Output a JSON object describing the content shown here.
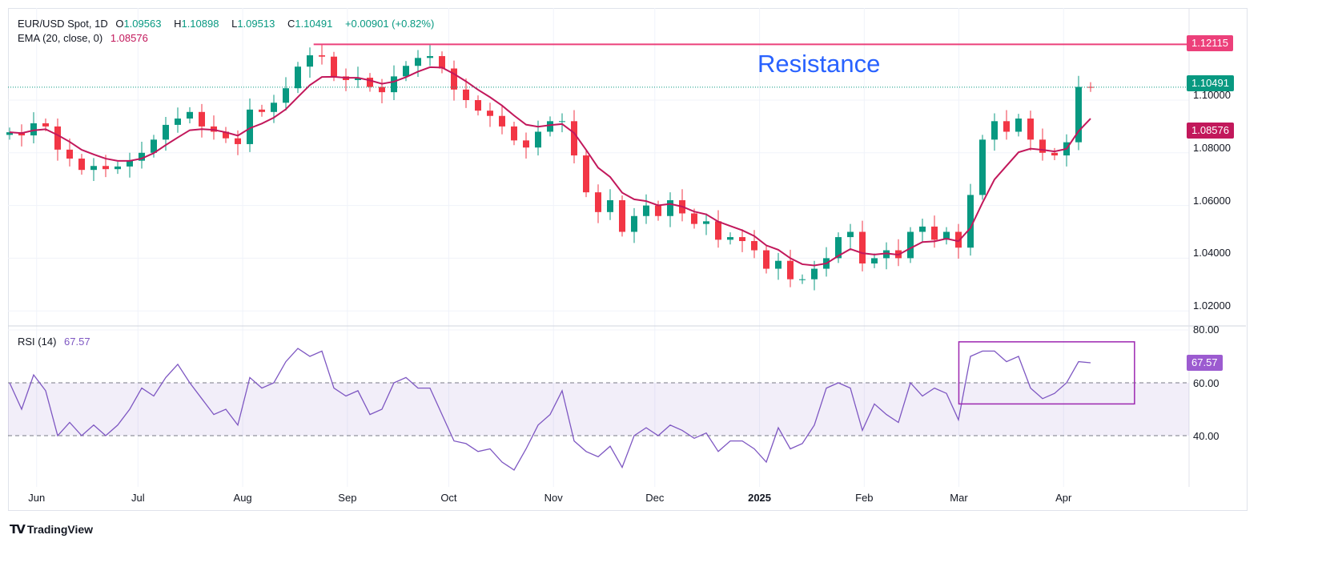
{
  "header": {
    "symbol": "EUR/USD Spot, 1D",
    "open_label": "O",
    "open": "1.09563",
    "high_label": "H",
    "high": "1.10898",
    "low_label": "L",
    "low": "1.09513",
    "close_label": "C",
    "close": "1.10491",
    "change": "+0.00901 (+0.82%)",
    "ema_label": "EMA (20, close, 0)",
    "ema_value": "1.08576",
    "rsi_label": "RSI (14)",
    "rsi_value": "67.57"
  },
  "annotation_text": "Resistance",
  "price_tags": {
    "resistance": "1.12115",
    "last": "1.10491",
    "ema": "1.08576",
    "rsi": "67.57"
  },
  "price_axis": [
    "1.10000",
    "1.08000",
    "1.06000",
    "1.04000",
    "1.02000"
  ],
  "rsi_axis": [
    "80.00",
    "60.00",
    "40.00"
  ],
  "brand": "TradingView",
  "colors": {
    "up": "#089981",
    "down": "#f23645",
    "ema": "#c2185b",
    "resistance": "#ec407a",
    "rsi": "#7e57c2",
    "rsi_box": "#9c27b0",
    "annotation": "#2962ff"
  },
  "chart_data": [
    {
      "type": "candlestick",
      "title": "EUR/USD Spot, 1D",
      "x_range": [
        "2024-05-24",
        "2025-04-09"
      ],
      "ylim": [
        1.012,
        1.127
      ],
      "grid": true,
      "x_ticks": [
        {
          "label": "Jun",
          "date": "2024-06-01"
        },
        {
          "label": "Jul",
          "date": "2024-07-01"
        },
        {
          "label": "Aug",
          "date": "2024-08-01"
        },
        {
          "label": "Sep",
          "date": "2024-09-01"
        },
        {
          "label": "Oct",
          "date": "2024-10-01"
        },
        {
          "label": "Nov",
          "date": "2024-11-01"
        },
        {
          "label": "Dec",
          "date": "2024-12-01"
        },
        {
          "label": "2025",
          "date": "2025-01-01"
        },
        {
          "label": "Feb",
          "date": "2025-02-01"
        },
        {
          "label": "Mar",
          "date": "2025-03-01"
        },
        {
          "label": "Apr",
          "date": "2025-04-01"
        }
      ],
      "y_ticks": [
        1.1,
        1.08,
        1.06,
        1.04,
        1.02
      ],
      "close": [
        1.0878,
        1.0866,
        1.0912,
        1.09,
        1.0812,
        1.0778,
        1.0735,
        1.075,
        1.0738,
        1.0748,
        1.077,
        1.08,
        1.085,
        1.0906,
        1.093,
        1.0955,
        1.09,
        1.088,
        1.0855,
        1.0833,
        1.0964,
        1.0955,
        1.099,
        1.1045,
        1.1127,
        1.117,
        1.1165,
        1.109,
        1.1076,
        1.1085,
        1.105,
        1.103,
        1.109,
        1.113,
        1.116,
        1.1167,
        1.112,
        1.104,
        1.1,
        1.096,
        1.094,
        1.09,
        1.0847,
        1.082,
        1.088,
        1.092,
        1.092,
        1.079,
        1.065,
        1.0575,
        1.062,
        1.05,
        1.056,
        1.06,
        1.056,
        1.062,
        1.057,
        1.053,
        1.054,
        1.047,
        1.048,
        1.0465,
        1.043,
        1.036,
        1.039,
        1.032,
        1.032,
        1.036,
        1.04,
        1.048,
        1.05,
        1.038,
        1.04,
        1.043,
        1.04,
        1.05,
        1.052,
        1.047,
        1.05,
        1.044,
        1.064,
        1.085,
        1.092,
        1.088,
        1.093,
        1.085,
        1.08,
        1.079,
        1.084,
        1.105,
        1.1049
      ],
      "ema_period": 20,
      "ema_last": 1.08576,
      "resistance": {
        "level": 1.12115,
        "from": "2024-08-22"
      }
    },
    {
      "type": "line",
      "title": "RSI (14)",
      "ylim": [
        20,
        82
      ],
      "y_ticks": [
        80,
        60,
        40
      ],
      "band": [
        40,
        60
      ],
      "values": [
        60,
        50,
        63,
        57,
        40,
        45,
        40,
        44,
        40,
        44,
        50,
        58,
        55,
        62,
        67,
        60,
        54,
        48,
        50,
        44,
        62,
        58,
        60,
        68,
        73,
        70,
        72,
        58,
        55,
        57,
        48,
        50,
        60,
        62,
        58,
        58,
        48,
        38,
        37,
        34,
        35,
        30,
        27,
        35,
        44,
        48,
        57,
        38,
        34,
        32,
        36,
        28,
        40,
        43,
        40,
        44,
        42,
        39,
        41,
        34,
        38,
        38,
        35,
        30,
        43,
        35,
        37,
        44,
        58,
        60,
        58,
        42,
        52,
        48,
        45,
        60,
        55,
        58,
        56,
        46,
        70,
        72,
        72,
        68,
        70,
        58,
        54,
        56,
        60,
        68,
        67.57
      ],
      "box": {
        "from": "2025-03-01",
        "to": "2025-04-22",
        "top": 75.5,
        "bottom": 52
      }
    }
  ]
}
